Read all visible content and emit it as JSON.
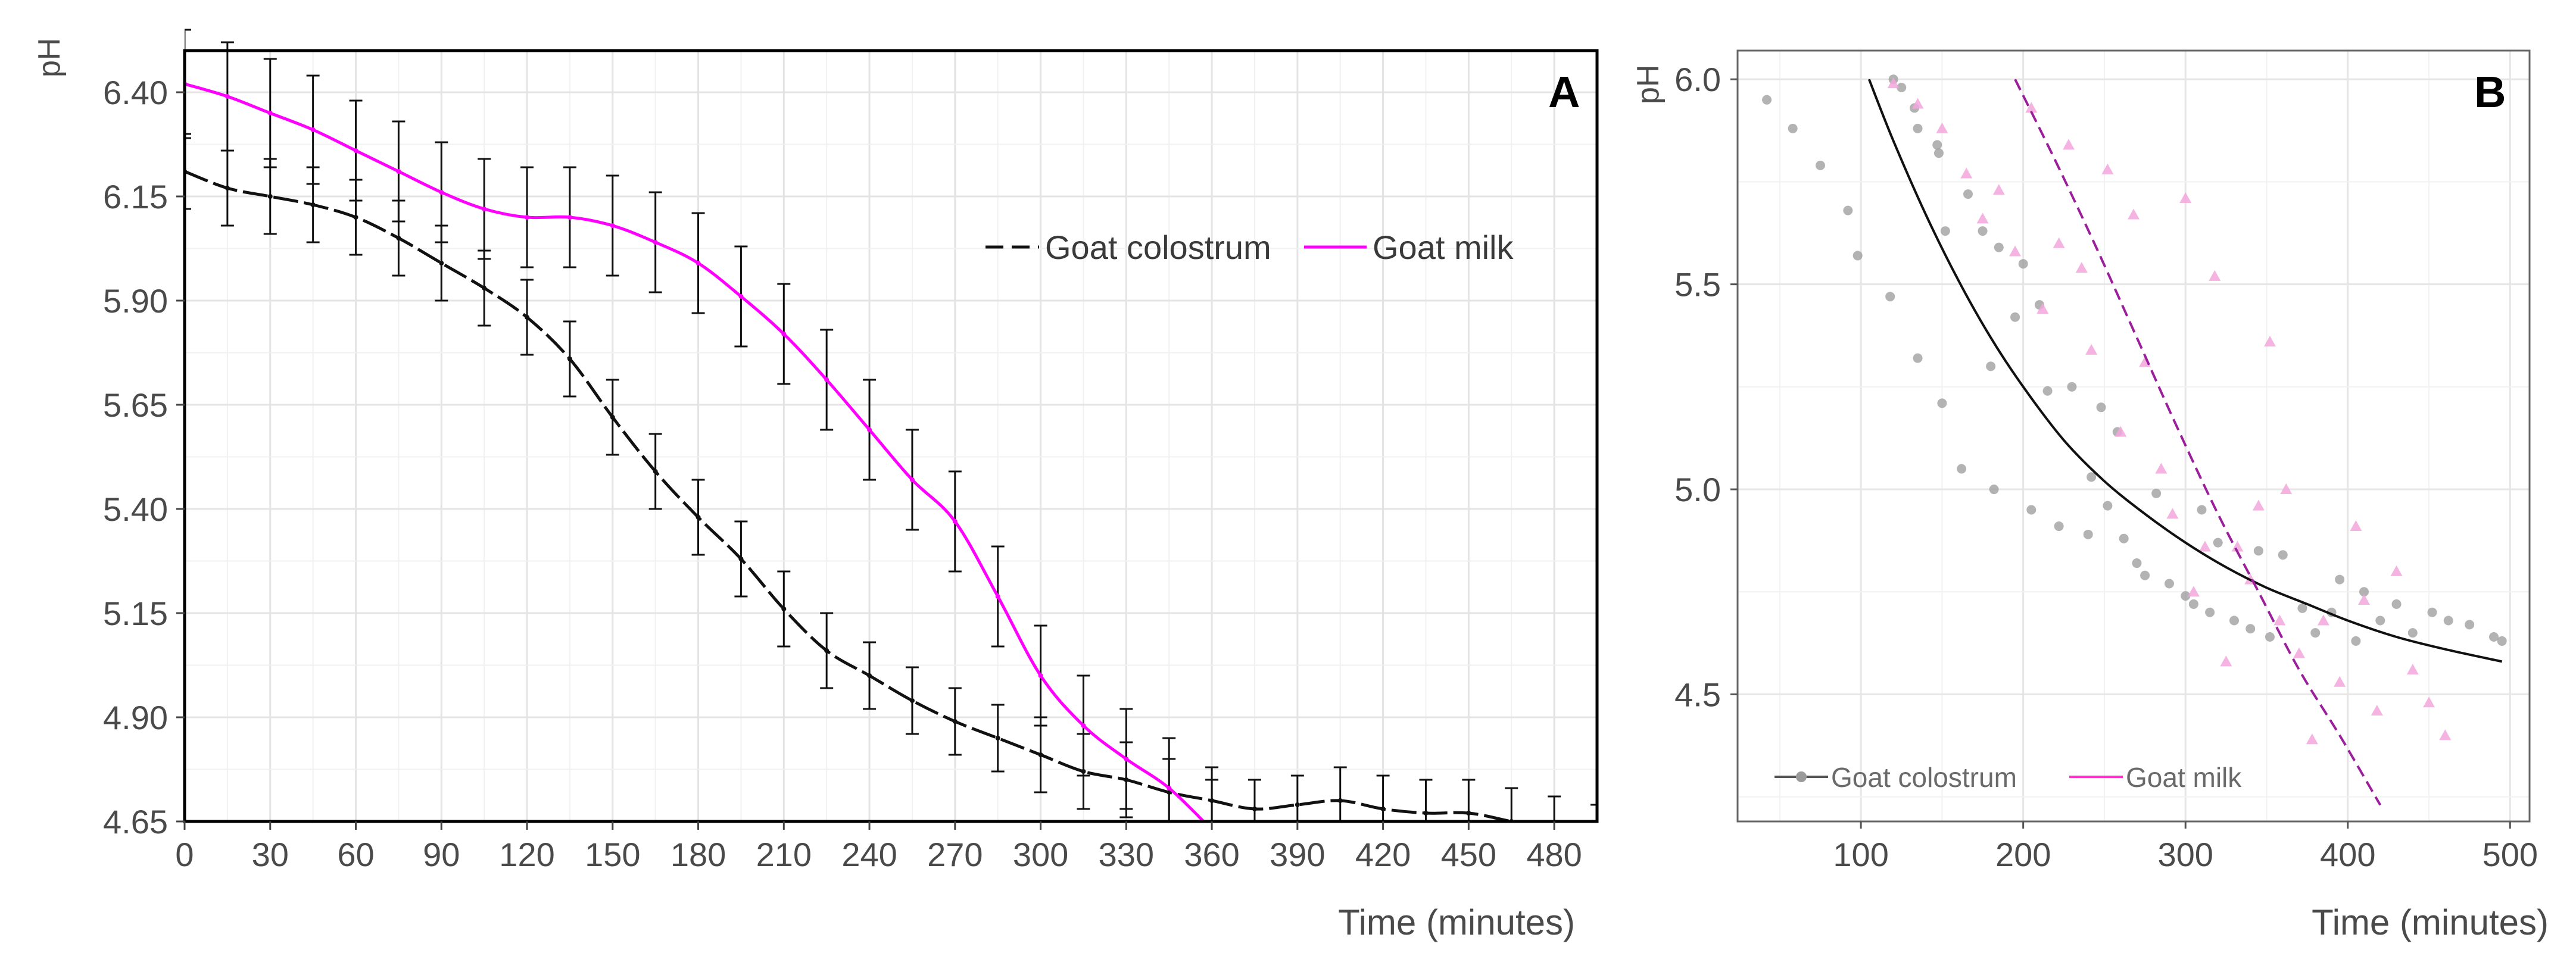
{
  "chart_data": [
    {
      "panel": "A",
      "type": "line",
      "xlabel": "Time (minutes)",
      "ylabel": "pH",
      "xlim": [
        0,
        495
      ],
      "ylim": [
        4.65,
        6.5
      ],
      "xticks": [
        0,
        30,
        60,
        90,
        120,
        150,
        180,
        210,
        240,
        270,
        300,
        330,
        360,
        390,
        420,
        450,
        480
      ],
      "yticks": [
        4.65,
        4.9,
        5.15,
        5.4,
        5.65,
        5.9,
        6.15,
        6.4
      ],
      "ytick_labels": [
        "4.65",
        "4.90",
        "5.15",
        "5.40",
        "5.65",
        "5.90",
        "6.15",
        "6.40"
      ],
      "grid": true,
      "legend_position": "top-right",
      "colors": {
        "colostrum": "#111111",
        "milk": "#ff00ff"
      },
      "series": [
        {
          "name": "Goat colostrum",
          "style": "dashed",
          "x": [
            0,
            15,
            30,
            45,
            60,
            75,
            90,
            105,
            120,
            135,
            150,
            165,
            180,
            195,
            210,
            225,
            240,
            255,
            270,
            285,
            300,
            315,
            330,
            345,
            360,
            375,
            390,
            405,
            420,
            435,
            450,
            465,
            480,
            495
          ],
          "y": [
            6.21,
            6.17,
            6.15,
            6.13,
            6.1,
            6.05,
            5.99,
            5.93,
            5.86,
            5.76,
            5.62,
            5.49,
            5.38,
            5.28,
            5.16,
            5.06,
            5.0,
            4.94,
            4.89,
            4.85,
            4.81,
            4.77,
            4.75,
            4.72,
            4.7,
            4.68,
            4.69,
            4.7,
            4.68,
            4.67,
            4.67,
            4.65,
            4.63,
            4.61
          ],
          "err": [
            0.09,
            0.09,
            0.09,
            0.09,
            0.09,
            0.09,
            0.09,
            0.09,
            0.09,
            0.09,
            0.09,
            0.09,
            0.09,
            0.09,
            0.09,
            0.09,
            0.08,
            0.08,
            0.08,
            0.08,
            0.09,
            0.09,
            0.09,
            0.08,
            0.08,
            0.07,
            0.07,
            0.08,
            0.08,
            0.08,
            0.08,
            0.08,
            0.08,
            0.08
          ]
        },
        {
          "name": "Goat milk",
          "style": "solid",
          "x": [
            0,
            15,
            30,
            45,
            60,
            75,
            90,
            105,
            120,
            135,
            150,
            165,
            180,
            195,
            210,
            225,
            240,
            255,
            270,
            285,
            300,
            315,
            330,
            345,
            360
          ],
          "y": [
            6.42,
            6.39,
            6.35,
            6.31,
            6.26,
            6.21,
            6.16,
            6.12,
            6.1,
            6.1,
            6.08,
            6.04,
            5.99,
            5.91,
            5.82,
            5.71,
            5.59,
            5.47,
            5.37,
            5.19,
            5.0,
            4.88,
            4.8,
            4.73,
            4.63
          ],
          "err": [
            0.13,
            0.13,
            0.13,
            0.13,
            0.12,
            0.12,
            0.12,
            0.12,
            0.12,
            0.12,
            0.12,
            0.12,
            0.12,
            0.12,
            0.12,
            0.12,
            0.12,
            0.12,
            0.12,
            0.12,
            0.12,
            0.12,
            0.12,
            0.12,
            0.12
          ]
        }
      ]
    },
    {
      "panel": "B",
      "type": "scatter",
      "xlabel": "Time (minutes)",
      "ylabel": "pH",
      "xlim": [
        24,
        512
      ],
      "ylim": [
        4.19,
        6.07
      ],
      "xticks": [
        100,
        200,
        300,
        400,
        500
      ],
      "yticks": [
        4.5,
        5.0,
        5.5,
        6.0
      ],
      "ytick_labels": [
        "4.5",
        "5.0",
        "5.5",
        "6.0"
      ],
      "grid": true,
      "legend_position": "bottom-left",
      "colors": {
        "colostrum_fit": "#111111",
        "milk_fit": "#9b1f9b",
        "colostrum_points": "#9a9a9a",
        "milk_points": "#f2a6dc",
        "legend_colostrum": "#555555",
        "legend_milk": "#ff33cc"
      },
      "series": [
        {
          "name": "Goat colostrum",
          "kind": "fit",
          "style": "solid",
          "x": [
            105,
            120,
            140,
            160,
            180,
            200,
            225,
            250,
            275,
            300,
            325,
            350,
            375,
            400,
            430,
            460,
            495
          ],
          "y": [
            6.0,
            5.85,
            5.67,
            5.51,
            5.37,
            5.25,
            5.12,
            5.02,
            4.94,
            4.87,
            4.81,
            4.76,
            4.72,
            4.68,
            4.64,
            4.61,
            4.58
          ]
        },
        {
          "name": "Goat milk",
          "kind": "fit",
          "style": "dashed",
          "x": [
            195,
            220,
            245,
            270,
            295,
            320,
            345,
            370,
            395,
            420
          ],
          "y": [
            6.0,
            5.8,
            5.59,
            5.37,
            5.15,
            4.94,
            4.75,
            4.56,
            4.4,
            4.23
          ]
        },
        {
          "name": "Goat colostrum",
          "kind": "points",
          "points": [
            [
              42,
              5.95
            ],
            [
              58,
              5.88
            ],
            [
              75,
              5.79
            ],
            [
              92,
              5.68
            ],
            [
              98,
              5.57
            ],
            [
              118,
              5.47
            ],
            [
              120,
              6.0
            ],
            [
              125,
              5.98
            ],
            [
              133,
              5.93
            ],
            [
              135,
              5.88
            ],
            [
              135,
              5.32
            ],
            [
              147,
              5.84
            ],
            [
              148,
              5.82
            ],
            [
              150,
              5.21
            ],
            [
              152,
              5.63
            ],
            [
              162,
              5.05
            ],
            [
              166,
              5.72
            ],
            [
              175,
              5.63
            ],
            [
              180,
              5.3
            ],
            [
              182,
              5.0
            ],
            [
              185,
              5.59
            ],
            [
              195,
              5.42
            ],
            [
              200,
              5.55
            ],
            [
              205,
              4.95
            ],
            [
              210,
              5.45
            ],
            [
              215,
              5.24
            ],
            [
              222,
              4.91
            ],
            [
              230,
              5.25
            ],
            [
              240,
              4.89
            ],
            [
              242,
              5.03
            ],
            [
              248,
              5.2
            ],
            [
              252,
              4.96
            ],
            [
              258,
              5.14
            ],
            [
              262,
              4.88
            ],
            [
              270,
              4.82
            ],
            [
              275,
              4.79
            ],
            [
              282,
              4.99
            ],
            [
              290,
              4.77
            ],
            [
              300,
              4.74
            ],
            [
              305,
              4.72
            ],
            [
              310,
              4.95
            ],
            [
              315,
              4.7
            ],
            [
              320,
              4.87
            ],
            [
              330,
              4.68
            ],
            [
              340,
              4.66
            ],
            [
              345,
              4.85
            ],
            [
              352,
              4.64
            ],
            [
              360,
              4.84
            ],
            [
              372,
              4.71
            ],
            [
              380,
              4.65
            ],
            [
              390,
              4.7
            ],
            [
              395,
              4.78
            ],
            [
              405,
              4.63
            ],
            [
              410,
              4.75
            ],
            [
              420,
              4.68
            ],
            [
              430,
              4.72
            ],
            [
              440,
              4.65
            ],
            [
              452,
              4.7
            ],
            [
              462,
              4.68
            ],
            [
              475,
              4.67
            ],
            [
              490,
              4.64
            ],
            [
              495,
              4.63
            ]
          ]
        },
        {
          "name": "Goat milk",
          "kind": "points",
          "points": [
            [
              120,
              5.99
            ],
            [
              135,
              5.94
            ],
            [
              150,
              5.88
            ],
            [
              165,
              5.77
            ],
            [
              175,
              5.66
            ],
            [
              185,
              5.73
            ],
            [
              195,
              5.58
            ],
            [
              205,
              5.93
            ],
            [
              212,
              5.44
            ],
            [
              222,
              5.6
            ],
            [
              228,
              5.84
            ],
            [
              236,
              5.54
            ],
            [
              242,
              5.34
            ],
            [
              252,
              5.78
            ],
            [
              260,
              5.14
            ],
            [
              268,
              5.67
            ],
            [
              275,
              5.31
            ],
            [
              285,
              5.05
            ],
            [
              292,
              4.94
            ],
            [
              300,
              5.71
            ],
            [
              305,
              4.75
            ],
            [
              312,
              4.86
            ],
            [
              318,
              5.52
            ],
            [
              325,
              4.58
            ],
            [
              332,
              4.86
            ],
            [
              340,
              4.78
            ],
            [
              345,
              4.96
            ],
            [
              352,
              5.36
            ],
            [
              358,
              4.68
            ],
            [
              362,
              5.0
            ],
            [
              370,
              4.6
            ],
            [
              378,
              4.39
            ],
            [
              385,
              4.68
            ],
            [
              395,
              4.53
            ],
            [
              405,
              4.91
            ],
            [
              410,
              4.73
            ],
            [
              418,
              4.46
            ],
            [
              430,
              4.8
            ],
            [
              440,
              4.56
            ],
            [
              450,
              4.48
            ],
            [
              460,
              4.4
            ]
          ]
        }
      ],
      "legend": [
        "Goat colostrum",
        "Goat milk"
      ]
    }
  ]
}
